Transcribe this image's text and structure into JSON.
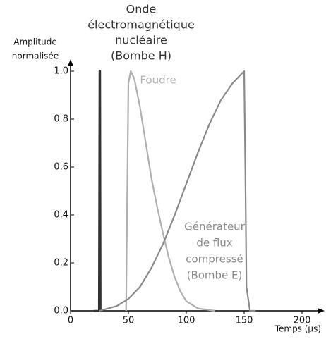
{
  "chart_data": {
    "type": "line",
    "xlabel": "Temps (µs)",
    "ylabel": [
      "Amplitude",
      "normalisée"
    ],
    "xlim": [
      0,
      216
    ],
    "ylim": [
      0,
      1.04
    ],
    "xticks": [
      0,
      50,
      100,
      150,
      200
    ],
    "yticks": [
      {
        "value": 0,
        "label": "0.0"
      },
      0.2,
      0.4,
      0.6,
      0.8,
      {
        "value": 1,
        "label": "1.0"
      }
    ],
    "series": [
      {
        "name": [
          "Onde",
          "électromagnétique",
          "nucléaire",
          "(Bombe H)"
        ],
        "color": "#333333",
        "x": [
          20,
          24.5,
          25,
          25.6,
          26,
          27
        ],
        "values": [
          0,
          0,
          1,
          1,
          0,
          0
        ]
      },
      {
        "name": [
          "Foudre"
        ],
        "color": "#b0b0b0",
        "x": [
          48,
          49,
          50,
          52,
          55,
          60,
          65,
          70,
          75,
          80,
          85,
          90,
          95,
          100,
          110,
          125
        ],
        "values": [
          0,
          0.5,
          0.95,
          1,
          0.97,
          0.85,
          0.7,
          0.55,
          0.43,
          0.32,
          0.22,
          0.14,
          0.08,
          0.04,
          0.01,
          0
        ]
      },
      {
        "name": [
          "Générateur",
          "de flux",
          "compressé",
          "(Bombe E)"
        ],
        "color": "#8a8a8a",
        "x": [
          25,
          40,
          50,
          60,
          70,
          80,
          90,
          100,
          110,
          120,
          130,
          140,
          148,
          150,
          151,
          152,
          155,
          160
        ],
        "values": [
          0,
          0.02,
          0.05,
          0.1,
          0.18,
          0.28,
          0.4,
          0.53,
          0.66,
          0.78,
          0.88,
          0.95,
          0.99,
          1,
          0.6,
          0.1,
          0,
          0
        ]
      }
    ]
  }
}
